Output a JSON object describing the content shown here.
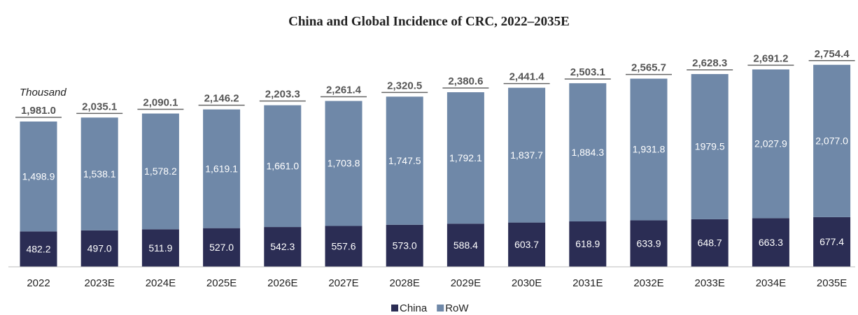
{
  "chart_data": {
    "type": "stacked_bar",
    "title": "China and Global Incidence of CRC, 2022–2035E",
    "unit_label": "Thousand",
    "categories": [
      "2022",
      "2023E",
      "2024E",
      "2025E",
      "2026E",
      "2027E",
      "2028E",
      "2029E",
      "2030E",
      "2031E",
      "2032E",
      "2033E",
      "2034E",
      "2035E"
    ],
    "series": [
      {
        "name": "China",
        "color": "#2b2d54",
        "values": [
          482.2,
          497.0,
          511.9,
          527.0,
          542.3,
          557.6,
          573.0,
          588.4,
          603.7,
          618.9,
          633.9,
          648.7,
          663.3,
          677.4
        ],
        "value_labels": [
          "482.2",
          "497.0",
          "511.9",
          "527.0",
          "542.3",
          "557.6",
          "573.0",
          "588.4",
          "603.7",
          "618.9",
          "633.9",
          "648.7",
          "663.3",
          "677.4"
        ]
      },
      {
        "name": "RoW",
        "color": "#6f88a8",
        "values": [
          1498.9,
          1538.1,
          1578.2,
          1619.1,
          1661.0,
          1703.8,
          1747.5,
          1792.1,
          1837.7,
          1884.3,
          1931.8,
          1979.5,
          2027.9,
          2077.0
        ],
        "value_labels": [
          "1,498.9",
          "1,538.1",
          "1,578.2",
          "1,619.1",
          "1,661.0",
          "1,703.8",
          "1,747.5",
          "1,792.1",
          "1,837.7",
          "1,884.3",
          "1,931.8",
          "1979.5",
          "2,027.9",
          "2,077.0"
        ]
      }
    ],
    "totals": [
      1981.0,
      2035.1,
      2090.1,
      2146.2,
      2203.3,
      2261.4,
      2320.5,
      2380.6,
      2441.4,
      2503.1,
      2565.7,
      2628.3,
      2691.2,
      2754.4
    ],
    "total_labels": [
      "1,981.0",
      "2,035.1",
      "2,090.1",
      "2,146.2",
      "2,203.3",
      "2,261.4",
      "2,320.5",
      "2,380.6",
      "2,441.4",
      "2,503.1",
      "2,565.7",
      "2,628.3",
      "2,691.2",
      "2,754.4"
    ],
    "ylim": [
      0,
      2800
    ],
    "legend": "bottom"
  }
}
